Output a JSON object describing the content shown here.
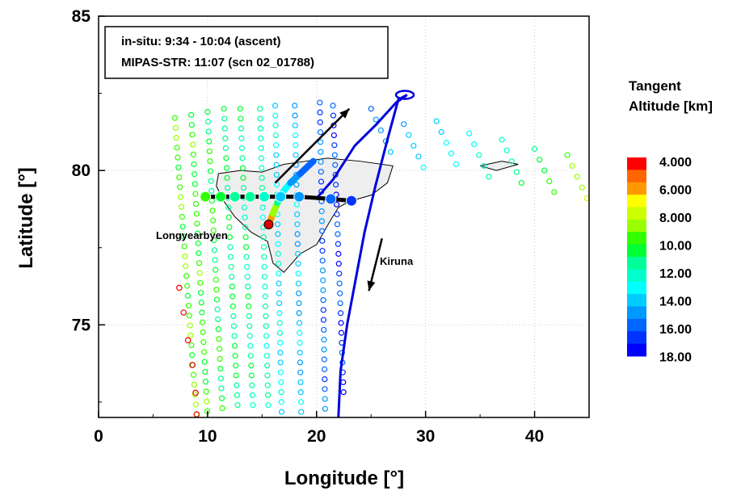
{
  "chart_data": {
    "type": "scatter",
    "title": "",
    "xlabel": "Longitude [°]",
    "ylabel": "Latitude [°]",
    "xlim": [
      0,
      45
    ],
    "ylim": [
      72,
      85
    ],
    "x_ticks": [
      "0",
      "10",
      "20",
      "30",
      "40"
    ],
    "y_ticks": [
      "75",
      "80",
      "85"
    ],
    "grid": "dotted",
    "info_box": {
      "line1": "in-situ: 9:34 - 10:04 (ascent)",
      "line2": "MIPAS-STR: 11:07 (scn 02_01788)"
    },
    "labels": {
      "station": "Longyearbyen",
      "flight_target": "Kiruna"
    },
    "colorbar": {
      "title_line1": "Tangent",
      "title_line2": "Altitude [km]",
      "ticks": [
        "4.000",
        "6.000",
        "8.000",
        "10.00",
        "12.00",
        "14.00",
        "16.00",
        "18.00"
      ],
      "colors": [
        "#ff0000",
        "#ff6600",
        "#ff9900",
        "#ffff00",
        "#ccff00",
        "#99ff00",
        "#33ff00",
        "#00ff33",
        "#00ff99",
        "#00ffcc",
        "#00ffff",
        "#00ccff",
        "#0099ff",
        "#0066ff",
        "#0033ff",
        "#0000ff"
      ]
    },
    "station_point": {
      "lon": 15.6,
      "lat": 78.25,
      "color": "#dd0000"
    },
    "flight_track": [
      [
        22.0,
        72.0
      ],
      [
        22.2,
        73.5
      ],
      [
        22.8,
        75.0
      ],
      [
        23.6,
        76.5
      ],
      [
        24.4,
        78.0
      ],
      [
        25.4,
        79.5
      ],
      [
        26.5,
        81.0
      ],
      [
        27.5,
        82.3
      ],
      [
        28.3,
        82.45
      ]
    ],
    "flight_track_return": [
      [
        28.3,
        82.45
      ],
      [
        27.3,
        82.2
      ],
      [
        25.5,
        81.5
      ],
      [
        23.5,
        80.8
      ],
      [
        21.5,
        79.7
      ],
      [
        20.0,
        79.1
      ]
    ],
    "insitu_ascent": [
      {
        "lon": 15.6,
        "lat": 78.25,
        "alt": 4.0
      },
      {
        "lon": 16.0,
        "lat": 78.6,
        "alt": 8.0
      },
      {
        "lon": 16.4,
        "lat": 78.95,
        "alt": 10.0
      },
      {
        "lon": 16.9,
        "lat": 79.3,
        "alt": 13.0
      },
      {
        "lon": 17.6,
        "lat": 79.6,
        "alt": 14.0
      },
      {
        "lon": 18.5,
        "lat": 79.9,
        "alt": 16.0
      },
      {
        "lon": 19.7,
        "lat": 80.3,
        "alt": 16.5
      }
    ],
    "line_of_sight_points": [
      {
        "lon": 9.8,
        "lat": 79.15,
        "alt": 10.0
      },
      {
        "lon": 11.2,
        "lat": 79.15,
        "alt": 10.5
      },
      {
        "lon": 12.5,
        "lat": 79.15,
        "alt": 11.0
      },
      {
        "lon": 13.9,
        "lat": 79.15,
        "alt": 11.5
      },
      {
        "lon": 15.2,
        "lat": 79.15,
        "alt": 12.0
      },
      {
        "lon": 16.7,
        "lat": 79.15,
        "alt": 14.0
      },
      {
        "lon": 18.4,
        "lat": 79.15,
        "alt": 15.5
      },
      {
        "lon": 21.3,
        "lat": 79.08,
        "alt": 16.5
      },
      {
        "lon": 23.2,
        "lat": 79.02,
        "alt": 17.0
      }
    ],
    "arrows": [
      {
        "from": [
          16.2,
          79.6
        ],
        "to": [
          23.0,
          82.0
        ]
      },
      {
        "from": [
          26.0,
          77.8
        ],
        "to": [
          24.8,
          76.1
        ]
      }
    ],
    "scan_columns": [
      {
        "lon_start": 7.0,
        "lon_end": 9.0,
        "lat_top": 81.7,
        "lat_bottom": 72.0,
        "alt": 9.5
      },
      {
        "lon_start": 8.5,
        "lon_end": 10.0,
        "lat_top": 81.8,
        "lat_bottom": 72.0,
        "alt": 10.0
      },
      {
        "lon_start": 10.0,
        "lon_end": 11.4,
        "lat_top": 81.9,
        "lat_bottom": 72.0,
        "alt": 10.5
      },
      {
        "lon_start": 11.5,
        "lon_end": 12.8,
        "lat_top": 82.0,
        "lat_bottom": 72.0,
        "alt": 11.0
      },
      {
        "lon_start": 13.0,
        "lon_end": 14.2,
        "lat_top": 82.0,
        "lat_bottom": 72.0,
        "alt": 11.5
      },
      {
        "lon_start": 14.8,
        "lon_end": 15.6,
        "lat_top": 82.0,
        "lat_bottom": 72.0,
        "alt": 12.0
      },
      {
        "lon_start": 16.2,
        "lon_end": 16.8,
        "lat_top": 82.1,
        "lat_bottom": 72.0,
        "alt": 13.5
      },
      {
        "lon_start": 18.0,
        "lon_end": 18.6,
        "lat_top": 82.1,
        "lat_bottom": 72.0,
        "alt": 14.5
      },
      {
        "lon_start": 20.3,
        "lon_end": 20.8,
        "lat_top": 82.2,
        "lat_bottom": 72.0,
        "alt": 16.0
      },
      {
        "lon_start": 21.5,
        "lon_end": 22.5,
        "lat_top": 82.1,
        "lat_bottom": 72.6,
        "alt": 17.0
      }
    ],
    "scan_tail": [
      {
        "lon": 25.0,
        "lat": 82.0,
        "alt": 16.0
      },
      {
        "lon": 28.0,
        "lat": 81.5,
        "alt": 15.0
      },
      {
        "lon": 31.0,
        "lat": 81.6,
        "alt": 14.5
      },
      {
        "lon": 34.0,
        "lat": 81.2,
        "alt": 13.5
      },
      {
        "lon": 37.0,
        "lat": 81.0,
        "alt": 12.5
      },
      {
        "lon": 40.0,
        "lat": 80.7,
        "alt": 11.0
      },
      {
        "lon": 43.0,
        "lat": 80.5,
        "alt": 9.5
      }
    ],
    "lower_rows_red": [
      {
        "lon": 7.4,
        "lat": 76.2
      },
      {
        "lon": 7.8,
        "lat": 75.4
      },
      {
        "lon": 8.2,
        "lat": 74.5
      },
      {
        "lon": 8.6,
        "lat": 73.7
      },
      {
        "lon": 8.9,
        "lat": 72.8
      },
      {
        "lon": 9.0,
        "lat": 72.1
      }
    ]
  }
}
